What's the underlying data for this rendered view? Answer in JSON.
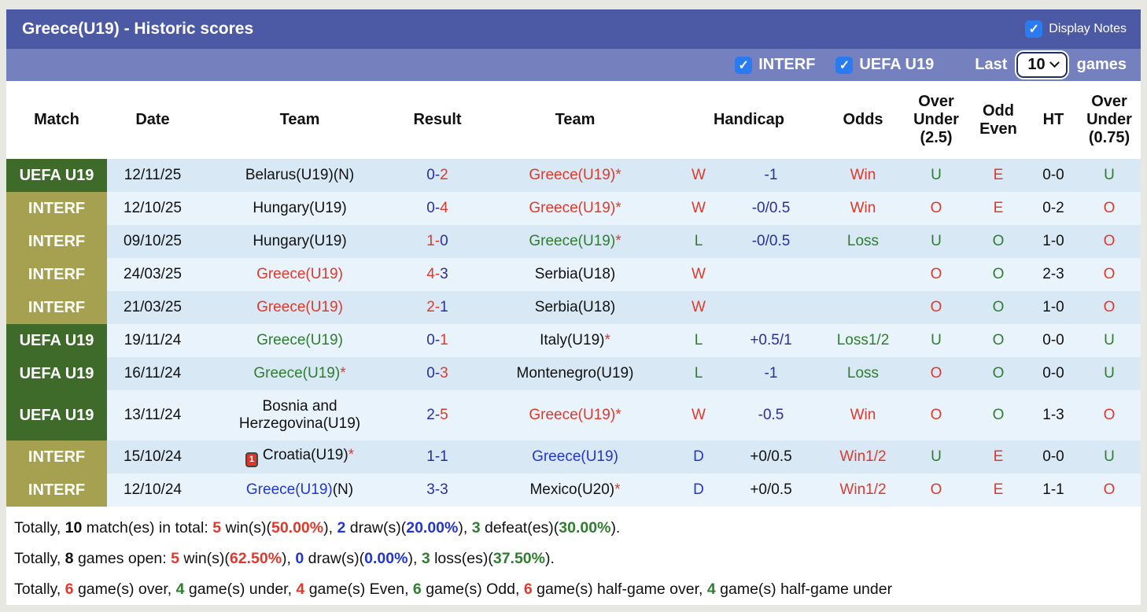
{
  "colors": {
    "bar1_bg": "#4c5aa6",
    "bar2_bg": "#7481be",
    "checkbox_blue": "#2b7bf0",
    "uefa_badge": "#3e6b29",
    "interf_badge": "#a5a151",
    "row_odd_bg": "#d9e8f5",
    "row_even_bg": "#e9f3fb",
    "red": "#e0392b",
    "green": "#2f7d2f",
    "navy": "#2a2f9f",
    "blue": "#2336cf"
  },
  "title_bar": {
    "title": "Greece(U19) - Historic scores",
    "display_notes": "Display Notes"
  },
  "filter_bar": {
    "interf": "INTERF",
    "uefa": "UEFA U19",
    "last": "Last",
    "count": "10",
    "games": "games"
  },
  "table": {
    "headers": {
      "match": "Match",
      "date": "Date",
      "team": "Team",
      "result": "Result",
      "team2": "Team",
      "handicap": "Handicap",
      "odds": "Odds",
      "ou25": "Over\nUnder\n(2.5)",
      "oddeven": "Odd\nEven",
      "ht": "HT",
      "ou075": "Over\nUnder\n(0.75)"
    },
    "rows": [
      {
        "league": "UEFA U19",
        "league_cls": "uefa",
        "date": "12/11/25",
        "home": {
          "card": "",
          "name": "Belarus(U19)(N)",
          "cls": "black",
          "suffix": "",
          "suffix_cls": "black"
        },
        "res": {
          "h": "0",
          "d": "-",
          "a": "2",
          "h_cls": "navy",
          "a_cls": "red"
        },
        "away": {
          "name": "Greece(U19)",
          "cls": "red",
          "suffix": "*",
          "suffix_cls": "red"
        },
        "letter": {
          "t": "W",
          "cls": "red"
        },
        "hcp": {
          "t": "-1",
          "cls": "navy"
        },
        "odds": {
          "t": "Win",
          "cls": "red"
        },
        "ou25": {
          "t": "U",
          "cls": "green"
        },
        "oe": {
          "t": "E",
          "cls": "red"
        },
        "ht": "0-0",
        "ou075": {
          "t": "U",
          "cls": "green"
        }
      },
      {
        "league": "INTERF",
        "league_cls": "interf",
        "date": "12/10/25",
        "home": {
          "card": "",
          "name": "Hungary(U19)",
          "cls": "black",
          "suffix": "",
          "suffix_cls": "black"
        },
        "res": {
          "h": "0",
          "d": "-",
          "a": "4",
          "h_cls": "navy",
          "a_cls": "red"
        },
        "away": {
          "name": "Greece(U19)",
          "cls": "red",
          "suffix": "*",
          "suffix_cls": "red"
        },
        "letter": {
          "t": "W",
          "cls": "red"
        },
        "hcp": {
          "t": "-0/0.5",
          "cls": "navy"
        },
        "odds": {
          "t": "Win",
          "cls": "red"
        },
        "ou25": {
          "t": "O",
          "cls": "red"
        },
        "oe": {
          "t": "E",
          "cls": "red"
        },
        "ht": "0-2",
        "ou075": {
          "t": "O",
          "cls": "red"
        }
      },
      {
        "league": "INTERF",
        "league_cls": "interf",
        "date": "09/10/25",
        "home": {
          "card": "",
          "name": "Hungary(U19)",
          "cls": "black",
          "suffix": "",
          "suffix_cls": "black"
        },
        "res": {
          "h": "1",
          "d": "-",
          "a": "0",
          "h_cls": "red",
          "a_cls": "navy"
        },
        "away": {
          "name": "Greece(U19)",
          "cls": "green",
          "suffix": "*",
          "suffix_cls": "red"
        },
        "letter": {
          "t": "L",
          "cls": "green"
        },
        "hcp": {
          "t": "-0/0.5",
          "cls": "navy"
        },
        "odds": {
          "t": "Loss",
          "cls": "green"
        },
        "ou25": {
          "t": "U",
          "cls": "green"
        },
        "oe": {
          "t": "O",
          "cls": "green"
        },
        "ht": "1-0",
        "ou075": {
          "t": "O",
          "cls": "red"
        }
      },
      {
        "league": "INTERF",
        "league_cls": "interf",
        "date": "24/03/25",
        "home": {
          "card": "",
          "name": "Greece(U19)",
          "cls": "red",
          "suffix": "",
          "suffix_cls": "black"
        },
        "res": {
          "h": "4",
          "d": "-",
          "a": "3",
          "h_cls": "red",
          "a_cls": "navy"
        },
        "away": {
          "name": "Serbia(U18)",
          "cls": "black",
          "suffix": "",
          "suffix_cls": "black"
        },
        "letter": {
          "t": "W",
          "cls": "red"
        },
        "hcp": {
          "t": "",
          "cls": "black"
        },
        "odds": {
          "t": "",
          "cls": "black"
        },
        "ou25": {
          "t": "O",
          "cls": "red"
        },
        "oe": {
          "t": "O",
          "cls": "green"
        },
        "ht": "2-3",
        "ou075": {
          "t": "O",
          "cls": "red"
        }
      },
      {
        "league": "INTERF",
        "league_cls": "interf",
        "date": "21/03/25",
        "home": {
          "card": "",
          "name": "Greece(U19)",
          "cls": "red",
          "suffix": "",
          "suffix_cls": "black"
        },
        "res": {
          "h": "2",
          "d": "-",
          "a": "1",
          "h_cls": "red",
          "a_cls": "navy"
        },
        "away": {
          "name": "Serbia(U18)",
          "cls": "black",
          "suffix": "",
          "suffix_cls": "black"
        },
        "letter": {
          "t": "W",
          "cls": "red"
        },
        "hcp": {
          "t": "",
          "cls": "black"
        },
        "odds": {
          "t": "",
          "cls": "black"
        },
        "ou25": {
          "t": "O",
          "cls": "red"
        },
        "oe": {
          "t": "O",
          "cls": "green"
        },
        "ht": "1-0",
        "ou075": {
          "t": "O",
          "cls": "red"
        }
      },
      {
        "league": "UEFA U19",
        "league_cls": "uefa",
        "date": "19/11/24",
        "home": {
          "card": "",
          "name": "Greece(U19)",
          "cls": "green",
          "suffix": "",
          "suffix_cls": "black"
        },
        "res": {
          "h": "0",
          "d": "-",
          "a": "1",
          "h_cls": "navy",
          "a_cls": "red"
        },
        "away": {
          "name": "Italy(U19)",
          "cls": "black",
          "suffix": "*",
          "suffix_cls": "red"
        },
        "letter": {
          "t": "L",
          "cls": "green"
        },
        "hcp": {
          "t": "+0.5/1",
          "cls": "navy"
        },
        "odds": {
          "t": "Loss1/2",
          "cls": "green"
        },
        "ou25": {
          "t": "U",
          "cls": "green"
        },
        "oe": {
          "t": "O",
          "cls": "green"
        },
        "ht": "0-0",
        "ou075": {
          "t": "U",
          "cls": "green"
        }
      },
      {
        "league": "UEFA U19",
        "league_cls": "uefa",
        "date": "16/11/24",
        "home": {
          "card": "",
          "name": "Greece(U19)",
          "cls": "green",
          "suffix": "*",
          "suffix_cls": "red"
        },
        "res": {
          "h": "0",
          "d": "-",
          "a": "3",
          "h_cls": "navy",
          "a_cls": "red"
        },
        "away": {
          "name": "Montenegro(U19)",
          "cls": "black",
          "suffix": "",
          "suffix_cls": "black"
        },
        "letter": {
          "t": "L",
          "cls": "green"
        },
        "hcp": {
          "t": "-1",
          "cls": "navy"
        },
        "odds": {
          "t": "Loss",
          "cls": "green"
        },
        "ou25": {
          "t": "O",
          "cls": "red"
        },
        "oe": {
          "t": "O",
          "cls": "green"
        },
        "ht": "0-0",
        "ou075": {
          "t": "U",
          "cls": "green"
        }
      },
      {
        "league": "UEFA U19",
        "league_cls": "uefa",
        "date": "13/11/24",
        "home": {
          "card": "",
          "name": "Bosnia and Herzegovina(U19)",
          "cls": "black",
          "suffix": "",
          "suffix_cls": "black"
        },
        "res": {
          "h": "2",
          "d": "-",
          "a": "5",
          "h_cls": "navy",
          "a_cls": "red"
        },
        "away": {
          "name": "Greece(U19)",
          "cls": "red",
          "suffix": "*",
          "suffix_cls": "red"
        },
        "letter": {
          "t": "W",
          "cls": "red"
        },
        "hcp": {
          "t": "-0.5",
          "cls": "navy"
        },
        "odds": {
          "t": "Win",
          "cls": "red"
        },
        "ou25": {
          "t": "O",
          "cls": "red"
        },
        "oe": {
          "t": "O",
          "cls": "green"
        },
        "ht": "1-3",
        "ou075": {
          "t": "O",
          "cls": "red"
        }
      },
      {
        "league": "INTERF",
        "league_cls": "interf",
        "date": "15/10/24",
        "home": {
          "card": "1",
          "name": "Croatia(U19)",
          "cls": "black",
          "suffix": "*",
          "suffix_cls": "red"
        },
        "res": {
          "h": "1",
          "d": "-",
          "a": "1",
          "h_cls": "navy",
          "a_cls": "navy"
        },
        "away": {
          "name": "Greece(U19)",
          "cls": "blue",
          "suffix": "",
          "suffix_cls": "black"
        },
        "letter": {
          "t": "D",
          "cls": "blue"
        },
        "hcp": {
          "t": "+0/0.5",
          "cls": "black"
        },
        "odds": {
          "t": "Win1/2",
          "cls": "red"
        },
        "ou25": {
          "t": "U",
          "cls": "green"
        },
        "oe": {
          "t": "E",
          "cls": "red"
        },
        "ht": "0-0",
        "ou075": {
          "t": "U",
          "cls": "green"
        }
      },
      {
        "league": "INTERF",
        "league_cls": "interf",
        "date": "12/10/24",
        "home": {
          "card": "",
          "name": "Greece(U19)",
          "cls": "blue",
          "suffix": "(N)",
          "suffix_cls": "black"
        },
        "res": {
          "h": "3",
          "d": "-",
          "a": "3",
          "h_cls": "navy",
          "a_cls": "navy"
        },
        "away": {
          "name": "Mexico(U20)",
          "cls": "black",
          "suffix": "*",
          "suffix_cls": "red"
        },
        "letter": {
          "t": "D",
          "cls": "blue"
        },
        "hcp": {
          "t": "+0/0.5",
          "cls": "black"
        },
        "odds": {
          "t": "Win1/2",
          "cls": "red"
        },
        "ou25": {
          "t": "O",
          "cls": "red"
        },
        "oe": {
          "t": "E",
          "cls": "red"
        },
        "ht": "1-1",
        "ou075": {
          "t": "O",
          "cls": "red"
        }
      }
    ]
  },
  "summary": [
    [
      {
        "t": "Totally, ",
        "c": ""
      },
      {
        "t": "10",
        "c": "b"
      },
      {
        "t": " match(es) in total: ",
        "c": ""
      },
      {
        "t": "5",
        "c": "red"
      },
      {
        "t": " win(s)(",
        "c": ""
      },
      {
        "t": "50.00%",
        "c": "red"
      },
      {
        "t": "), ",
        "c": ""
      },
      {
        "t": "2",
        "c": "blue"
      },
      {
        "t": " draw(s)(",
        "c": ""
      },
      {
        "t": "20.00%",
        "c": "blue"
      },
      {
        "t": "), ",
        "c": ""
      },
      {
        "t": "3",
        "c": "green"
      },
      {
        "t": " defeat(es)(",
        "c": ""
      },
      {
        "t": "30.00%",
        "c": "green"
      },
      {
        "t": ").",
        "c": ""
      }
    ],
    [
      {
        "t": "Totally, ",
        "c": ""
      },
      {
        "t": "8",
        "c": "b"
      },
      {
        "t": " games open: ",
        "c": ""
      },
      {
        "t": "5",
        "c": "red"
      },
      {
        "t": " win(s)(",
        "c": ""
      },
      {
        "t": "62.50%",
        "c": "red"
      },
      {
        "t": "), ",
        "c": ""
      },
      {
        "t": "0",
        "c": "blue"
      },
      {
        "t": " draw(s)(",
        "c": ""
      },
      {
        "t": "0.00%",
        "c": "blue"
      },
      {
        "t": "), ",
        "c": ""
      },
      {
        "t": "3",
        "c": "green"
      },
      {
        "t": " loss(es)(",
        "c": ""
      },
      {
        "t": "37.50%",
        "c": "green"
      },
      {
        "t": ").",
        "c": ""
      }
    ],
    [
      {
        "t": "Totally, ",
        "c": ""
      },
      {
        "t": "6",
        "c": "red"
      },
      {
        "t": " game(s) over, ",
        "c": ""
      },
      {
        "t": "4",
        "c": "green"
      },
      {
        "t": " game(s) under, ",
        "c": ""
      },
      {
        "t": "4",
        "c": "red"
      },
      {
        "t": " game(s) Even, ",
        "c": ""
      },
      {
        "t": "6",
        "c": "green"
      },
      {
        "t": " game(s) Odd, ",
        "c": ""
      },
      {
        "t": "6",
        "c": "red"
      },
      {
        "t": " game(s) half-game over, ",
        "c": ""
      },
      {
        "t": "4",
        "c": "green"
      },
      {
        "t": " game(s) half-game under",
        "c": ""
      }
    ]
  ]
}
